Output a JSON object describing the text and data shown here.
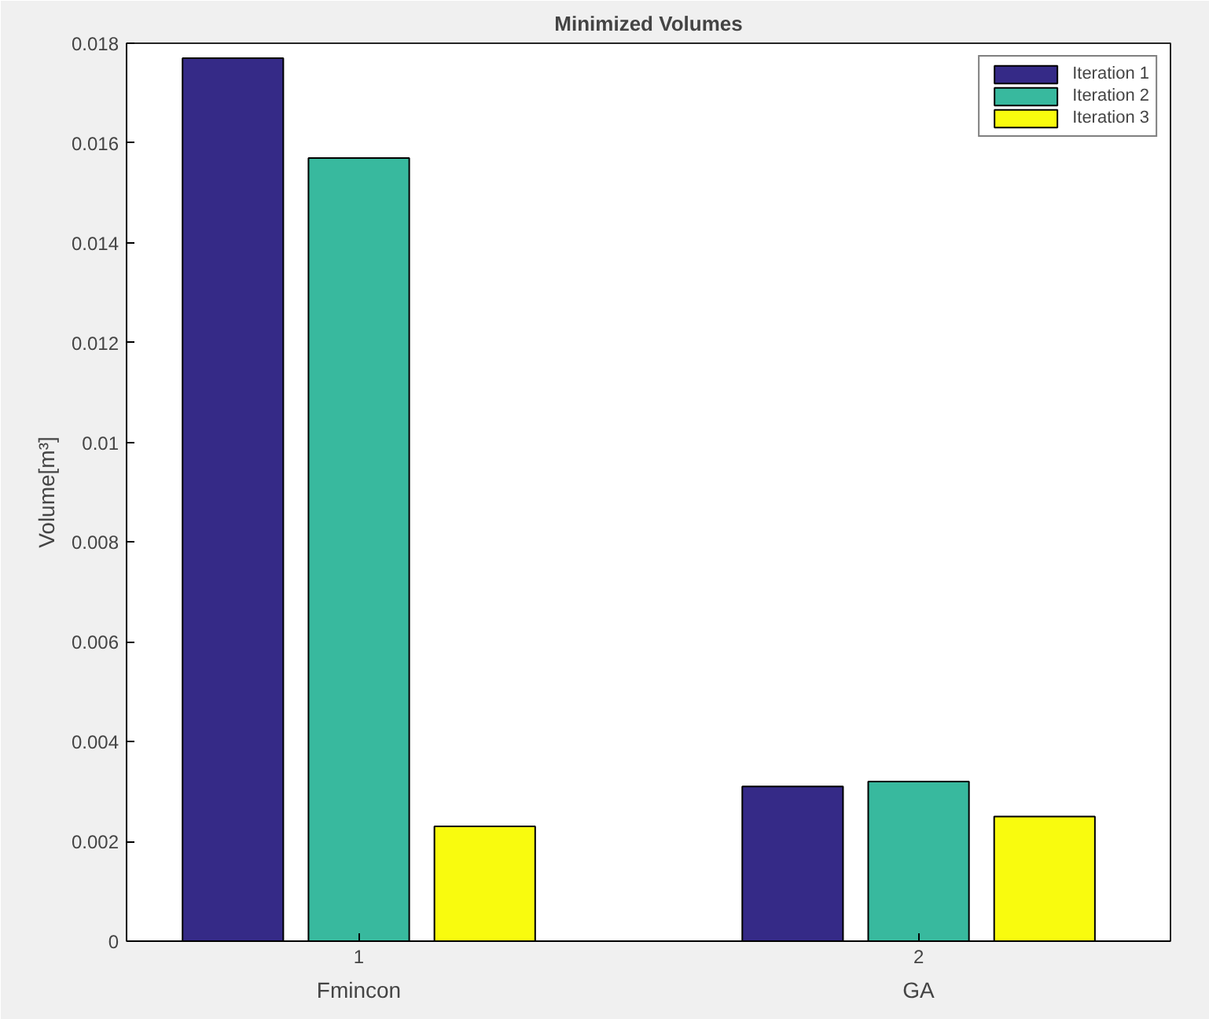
{
  "chart_data": {
    "type": "bar",
    "title": "Minimized Volumes",
    "ylabel": "Volume[m³]",
    "x": [
      1,
      2
    ],
    "xlim": [
      0.585,
      2.45
    ],
    "xticks": [
      1,
      2
    ],
    "ylim": [
      0,
      0.018
    ],
    "yticks": [
      0,
      0.002,
      0.004,
      0.006,
      0.008,
      0.01,
      0.012,
      0.014,
      0.016,
      0.018
    ],
    "series": [
      {
        "name": "Iteration 1",
        "color": "#352a87",
        "values": [
          0.0177,
          0.0031
        ]
      },
      {
        "name": "Iteration 2",
        "color": "#38b99e",
        "values": [
          0.0157,
          0.0032
        ]
      },
      {
        "name": "Iteration 3",
        "color": "#f9fb0e",
        "values": [
          0.0023,
          0.0025
        ]
      }
    ],
    "annotations": [
      "Fmincon",
      "GA"
    ],
    "legend": "top right",
    "grid": false
  }
}
